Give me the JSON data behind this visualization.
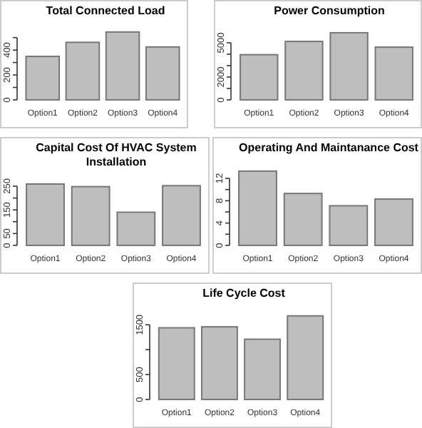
{
  "chart_data": [
    {
      "type": "bar",
      "title": "Total Connected Load",
      "categories": [
        "Option1",
        "Option2",
        "Option3",
        "Option4"
      ],
      "values": [
        349,
        462,
        545,
        425
      ],
      "color": "#bebebe",
      "ylim": [
        0,
        550
      ],
      "yticks": [
        0,
        {
          "value": 100,
          "label": null
        },
        200,
        {
          "value": 300,
          "label": null
        },
        400,
        {
          "value": 500,
          "label": null
        }
      ],
      "grid": false
    },
    {
      "type": "bar",
      "title": "Power Consumption",
      "categories": [
        "Option1",
        "Option2",
        "Option3",
        "Option4"
      ],
      "values": [
        3960,
        5120,
        5880,
        4620
      ],
      "color": "#bebebe",
      "ylim": [
        0,
        6000
      ],
      "yticks": [
        0,
        {
          "value": 1000,
          "label": null
        },
        2000,
        {
          "value": 3000,
          "label": null
        },
        {
          "value": 4000,
          "label": null
        },
        5000
      ],
      "grid": false
    },
    {
      "type": "bar",
      "title": "Capital Cost Of HVAC System Installation",
      "categories": [
        "Option1",
        "Option2",
        "Option3",
        "Option4"
      ],
      "values": [
        259,
        248,
        140,
        252
      ],
      "color": "#bebebe",
      "ylim": [
        0,
        265
      ],
      "yticks": [
        0,
        50,
        {
          "value": 100,
          "label": null
        },
        150,
        {
          "value": 200,
          "label": null
        },
        250
      ],
      "grid": false
    },
    {
      "type": "bar",
      "title": "Operating And Maintanance Cost",
      "categories": [
        "Option1",
        "Option2",
        "Option3",
        "Option4"
      ],
      "values": [
        13.3,
        9.3,
        7.1,
        8.3
      ],
      "color": "#bebebe",
      "ylim": [
        0,
        13.8
      ],
      "yticks": [
        0,
        {
          "value": 2,
          "label": null
        },
        4,
        {
          "value": 6,
          "label": null
        },
        8,
        {
          "value": 10,
          "label": null
        },
        12
      ],
      "grid": false
    },
    {
      "type": "bar",
      "title": "Life Cycle Cost",
      "categories": [
        "Option1",
        "Option2",
        "Option3",
        "Option4"
      ],
      "values": [
        1440,
        1460,
        1210,
        1680
      ],
      "color": "#bebebe",
      "ylim": [
        0,
        1720
      ],
      "yticks": [
        0,
        500,
        {
          "value": 1000,
          "label": null
        },
        1500
      ],
      "grid": false
    }
  ]
}
